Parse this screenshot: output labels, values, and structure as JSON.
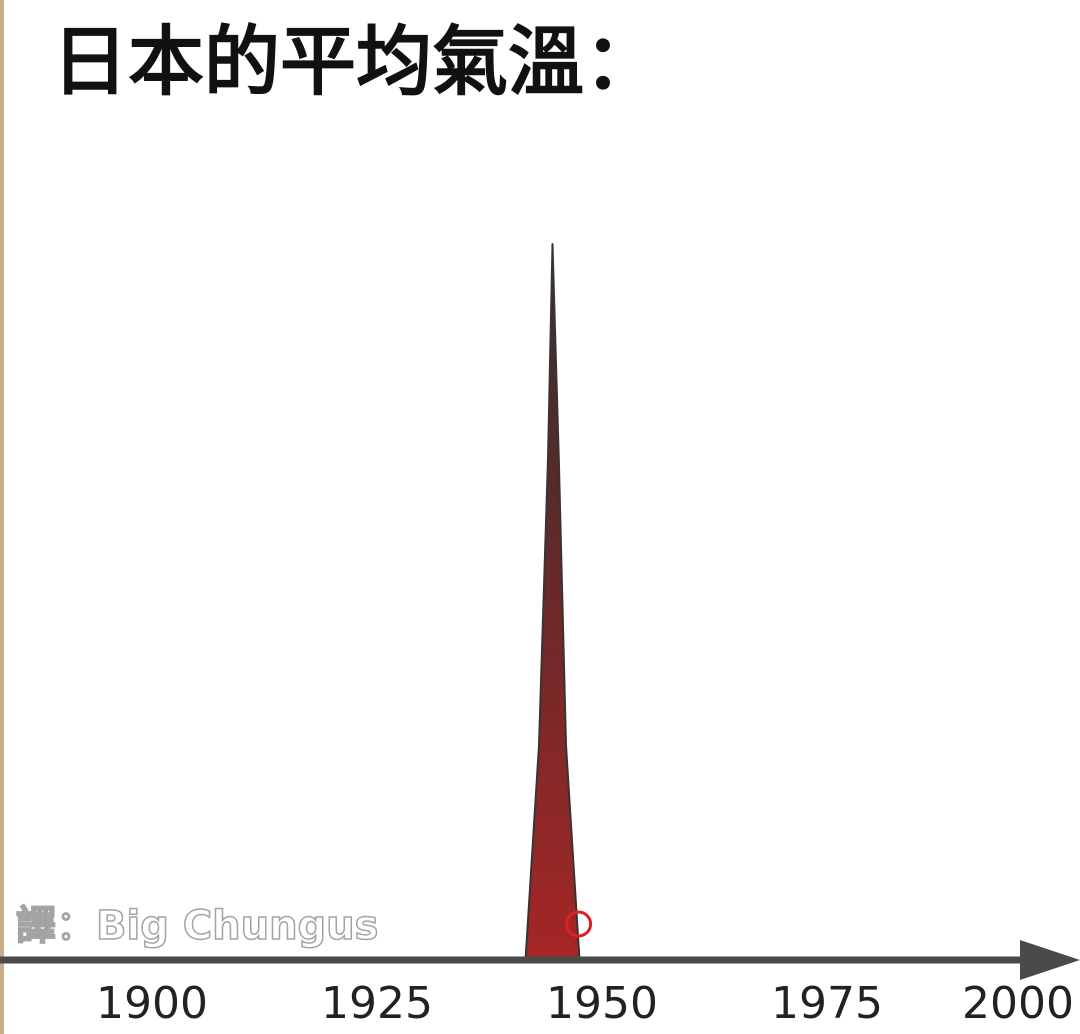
{
  "title": "日本的平均氣溫：",
  "watermark": "譯：Big Chungus",
  "chart_data": {
    "type": "area",
    "title": "日本的平均氣溫：",
    "xlabel": "",
    "ylabel": "",
    "x_ticks": [
      1900,
      1925,
      1950,
      1975,
      2000
    ],
    "xlim": [
      1884,
      2000
    ],
    "ylim": [
      0,
      100
    ],
    "grid": false,
    "series": [
      {
        "x": [
          1941.5,
          1943,
          1944,
          1944.5,
          1945.2,
          1946,
          1947.5
        ],
        "y": [
          0,
          30,
          70,
          100,
          70,
          30,
          0
        ],
        "color": "#8b2a2a"
      }
    ],
    "marker": {
      "x": 1947.4,
      "y": 5,
      "color": "#e02020"
    },
    "axis_color": "#4a4a4a"
  }
}
